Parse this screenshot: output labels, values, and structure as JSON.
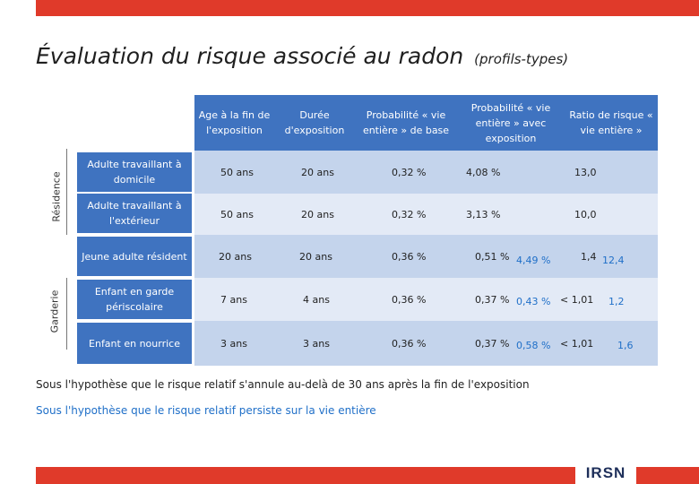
{
  "title": {
    "main": "Évaluation du risque associé au radon",
    "sub": "(profils-types)"
  },
  "headers": {
    "age": "Age à la fin de l'exposition",
    "duree": "Durée d'exposition",
    "prob_base": "Probabilité « vie entière » de base",
    "prob_expo": "Probabilité « vie entière » avec exposition",
    "ratio": "Ratio de risque « vie entière »"
  },
  "groups": {
    "residence": "Résidence",
    "garderie": "Garderie"
  },
  "rows": [
    {
      "label": "Adulte travaillant à domicile",
      "age": "50 ans",
      "duree": "20 ans",
      "base": "0,32 %",
      "expo": "4,08 %",
      "expo_alt": "",
      "ratio": "13,0",
      "ratio_alt": ""
    },
    {
      "label": "Adulte travaillant à l'extérieur",
      "age": "50 ans",
      "duree": "20 ans",
      "base": "0,32 %",
      "expo": "3,13 %",
      "expo_alt": "",
      "ratio": "10,0",
      "ratio_alt": ""
    },
    {
      "label": "Jeune adulte résident",
      "age": "20 ans",
      "duree": "20 ans",
      "base": "0,36 %",
      "expo": "0,51 %",
      "expo_alt": "4,49 %",
      "ratio": "1,4",
      "ratio_alt": "12,4"
    },
    {
      "label": "Enfant en garde périscolaire",
      "age": "7 ans",
      "duree": "4 ans",
      "base": "0,36 %",
      "expo": "0,37 %",
      "expo_alt": "0,43 %",
      "ratio": "< 1,01",
      "ratio_alt": "1,2"
    },
    {
      "label": "Enfant en nourrice",
      "age": "3 ans",
      "duree": "3 ans",
      "base": "0,36 %",
      "expo": "0,37 %",
      "expo_alt": "0,58 %",
      "ratio": "< 1,01",
      "ratio_alt": "1,6"
    }
  ],
  "notes": {
    "black": "Sous l'hypothèse que le risque relatif s'annule au-delà de 30 ans après la fin de l'exposition",
    "blue": "Sous l'hypothèse que le risque relatif persiste sur la vie entière"
  },
  "logo": "IRSN",
  "colors": {
    "accent_red": "#e03a2a",
    "header_blue": "#3f73c0",
    "alt_value_blue": "#1f6fc8"
  }
}
